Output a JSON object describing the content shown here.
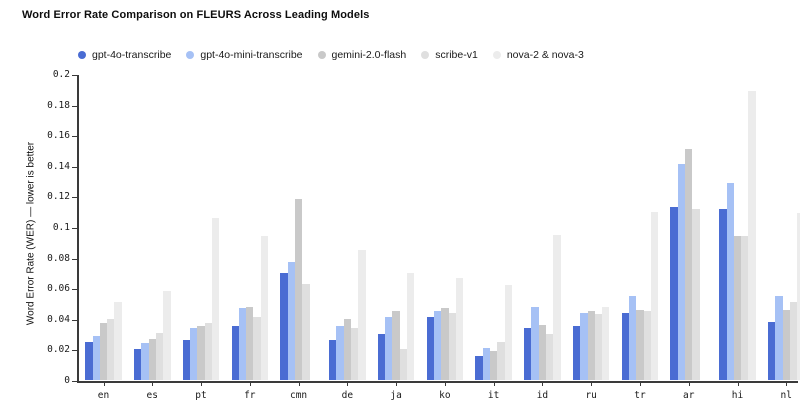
{
  "title": "Word Error Rate Comparison on FLEURS Across Leading Models",
  "chart_data": {
    "type": "bar",
    "title": "Word Error Rate Comparison on FLEURS Across Leading Models",
    "xlabel": "",
    "ylabel": "Word Error Rate (WER) — lower is better",
    "ylim": [
      0,
      0.2
    ],
    "ytick_labels": [
      "0",
      "0.02",
      "0.04",
      "0.06",
      "0.08",
      "0.1",
      "0.12",
      "0.14",
      "0.16",
      "0.18",
      "0.2"
    ],
    "ytick_values": [
      0,
      0.02,
      0.04,
      0.06,
      0.08,
      0.1,
      0.12,
      0.14,
      0.16,
      0.18,
      0.2
    ],
    "grid": false,
    "legend_position": "top-left",
    "categories": [
      "en",
      "es",
      "pt",
      "fr",
      "cmn",
      "de",
      "ja",
      "ko",
      "it",
      "id",
      "ru",
      "tr",
      "ar",
      "hi",
      "nl"
    ],
    "series": [
      {
        "name": "gpt-4o-transcribe",
        "color": "#4a6cd3",
        "values": [
          0.025,
          0.02,
          0.026,
          0.035,
          0.07,
          0.026,
          0.03,
          0.041,
          0.016,
          0.034,
          0.035,
          0.044,
          0.113,
          0.112,
          0.038
        ]
      },
      {
        "name": "gpt-4o-mini-transcribe",
        "color": "#a6c1f5",
        "values": [
          0.029,
          0.024,
          0.034,
          0.047,
          0.077,
          0.035,
          0.041,
          0.045,
          0.021,
          0.048,
          0.044,
          0.055,
          0.141,
          0.129,
          0.055
        ]
      },
      {
        "name": "gemini-2.0-flash",
        "color": "#c9c9c9",
        "values": [
          0.037,
          0.027,
          0.035,
          0.048,
          0.118,
          0.04,
          0.045,
          0.047,
          0.019,
          0.036,
          0.045,
          0.046,
          0.151,
          0.094,
          0.046
        ]
      },
      {
        "name": "scribe-v1",
        "color": "#dfdfdf",
        "values": [
          0.04,
          0.031,
          0.037,
          0.041,
          0.063,
          0.034,
          0.02,
          0.044,
          0.025,
          0.03,
          0.043,
          0.045,
          0.112,
          0.094,
          0.051
        ]
      },
      {
        "name": "nova-2 & nova-3",
        "color": "#ececec",
        "values": [
          0.051,
          0.058,
          0.106,
          0.094,
          null,
          0.085,
          0.07,
          0.067,
          0.062,
          0.095,
          0.048,
          0.11,
          null,
          0.189,
          0.109
        ]
      }
    ]
  }
}
